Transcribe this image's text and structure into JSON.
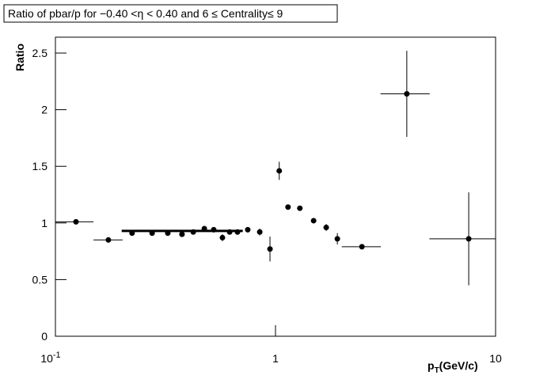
{
  "chart_data": {
    "type": "scatter",
    "title": "Ratio of pbar/p for −0.40 <η < 0.40 and 6 ≤ Centrality≤ 9",
    "y_label": "Ratio",
    "x_label": "p",
    "x_label_sub": "T",
    "x_label_rest": "(GeV/c)",
    "x_log": true,
    "xlim": [
      0.1,
      10
    ],
    "xticks": [
      {
        "value": 0.1,
        "label": "10",
        "exponent": "-1"
      },
      1,
      10
    ],
    "ylim": [
      0,
      2.64
    ],
    "yticks": [
      0,
      0.5,
      1,
      1.5,
      2,
      2.5
    ],
    "color": "#000000",
    "x": [
      0.124,
      0.174,
      0.223,
      0.275,
      0.324,
      0.376,
      0.423,
      0.475,
      0.524,
      0.574,
      0.619,
      0.672,
      0.748,
      0.848,
      0.944,
      1.04,
      1.14,
      1.29,
      1.49,
      1.7,
      1.91,
      2.47,
      3.95,
      7.55
    ],
    "values": [
      1.01,
      0.85,
      0.91,
      0.91,
      0.91,
      0.9,
      0.92,
      0.95,
      0.94,
      0.87,
      0.92,
      0.92,
      0.94,
      0.92,
      0.77,
      1.46,
      1.14,
      1.13,
      1.02,
      0.96,
      0.86,
      0.79,
      2.14,
      0.86
    ],
    "yerr": [
      0.02,
      0.02,
      0.02,
      0.02,
      0.02,
      0.02,
      0.02,
      0.02,
      0.02,
      0.03,
      0.02,
      0.02,
      0.02,
      0.03,
      0.11,
      0.08,
      0.02,
      0.02,
      0.02,
      0.03,
      0.05,
      0.02,
      0.38,
      0.41
    ],
    "x_low": [
      0.1,
      0.149,
      null,
      null,
      null,
      null,
      null,
      null,
      null,
      null,
      null,
      null,
      null,
      null,
      null,
      null,
      null,
      null,
      null,
      null,
      null,
      2.0,
      3.0,
      5.0
    ],
    "x_high": [
      0.149,
      0.202,
      null,
      null,
      null,
      null,
      null,
      null,
      null,
      null,
      null,
      null,
      null,
      null,
      null,
      null,
      null,
      null,
      null,
      null,
      null,
      3.01,
      5.02,
      10
    ],
    "fit": {
      "x": [
        0.2,
        0.71
      ],
      "value": 0.93
    }
  }
}
